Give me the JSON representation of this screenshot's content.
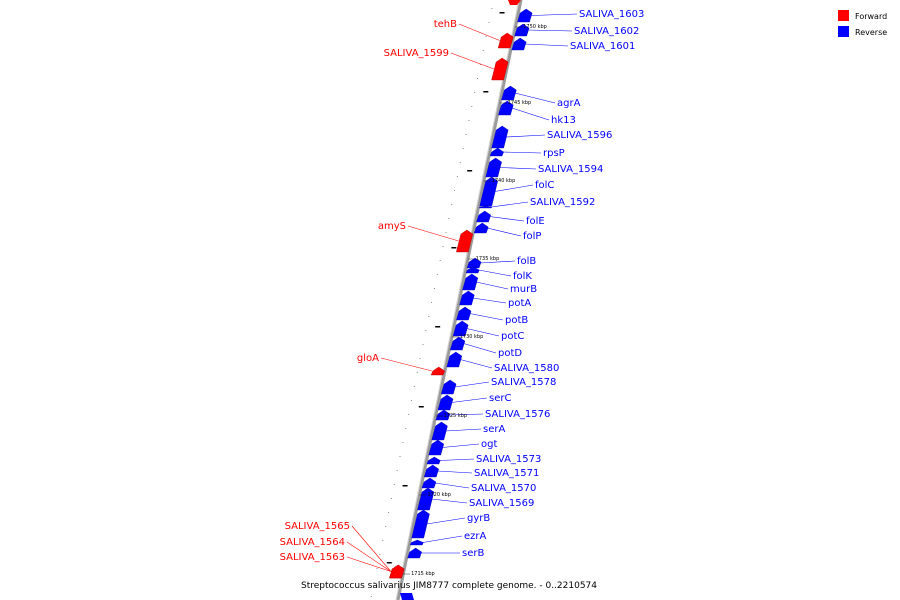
{
  "caption": "Streptococcus salivarius JIM8777 complete genome. - 0..2210574",
  "legend": [
    {
      "label": "Forward",
      "color": "#ff0000"
    },
    {
      "label": "Reverse",
      "color": "#0000ff"
    }
  ],
  "colors": {
    "forward": "#ff0000",
    "reverse": "#0000ff",
    "backbone": "#9a9a9a"
  },
  "ticks": [
    "1750 kbp",
    "1745 kbp",
    "1740 kbp",
    "1735 kbp",
    "1730 kbp",
    "1725 kbp",
    "1720 kbp",
    "1715 kbp"
  ],
  "forward_genes": [
    "tehB",
    "SALIVA_1599",
    "amyS",
    "gloA",
    "SALIVA_1565",
    "SALIVA_1564",
    "SALIVA_1563"
  ],
  "reverse_genes": [
    "SALIVA_1603",
    "SALIVA_1602",
    "SALIVA_1601",
    "agrA",
    "hk13",
    "SALIVA_1596",
    "rpsP",
    "SALIVA_1594",
    "folC",
    "SALIVA_1592",
    "folE",
    "folP",
    "folB",
    "folK",
    "murB",
    "potA",
    "potB",
    "potC",
    "potD",
    "SALIVA_1580",
    "SALIVA_1578",
    "serC",
    "SALIVA_1576",
    "serA",
    "ogt",
    "SALIVA_1573",
    "SALIVA_1571",
    "SALIVA_1570",
    "SALIVA_1569",
    "gyrB",
    "ezrA",
    "serB"
  ]
}
